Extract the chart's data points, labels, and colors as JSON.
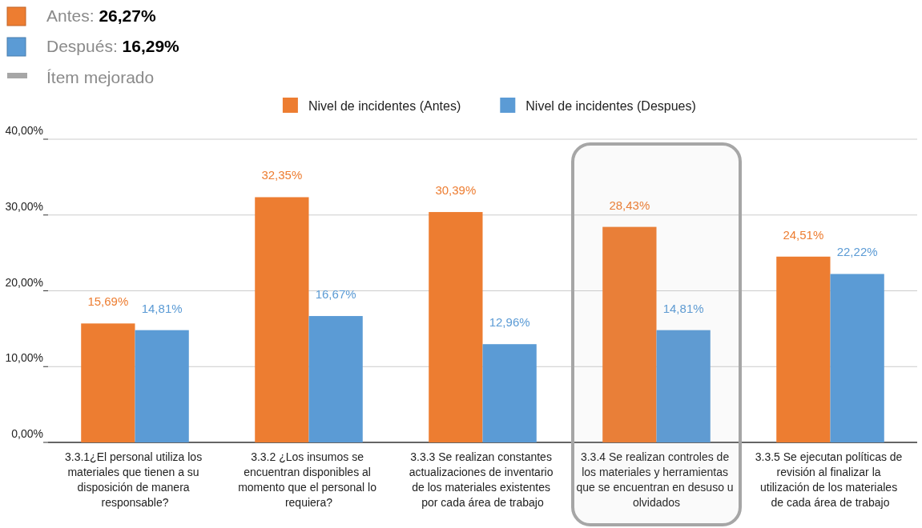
{
  "chart_data": {
    "type": "bar",
    "categories": [
      "3.3.1¿El personal utiliza los materiales que tienen a su disposición de manera responsable?",
      "3.3.2 ¿Los insumos se encuentran disponibles al momento que el personal lo requiera?",
      "3.3.3 Se realizan constantes actualizaciones de inventario de los materiales existentes por cada área de trabajo",
      "3.3.4 Se realizan controles de los materiales y herramientas que se encuentran en desuso u olvidados",
      "3.3.5 Se ejecutan políticas de revisión al finalizar la utilización de los materiales de cada área de trabajo"
    ],
    "series": [
      {
        "name": "Nivel de incidentes (Antes)",
        "color": "#ed7d31",
        "values": [
          15.69,
          32.35,
          30.39,
          28.43,
          24.51
        ],
        "value_labels": [
          "15,69%",
          "32,35%",
          "30,39%",
          "28,43%",
          "24,51%"
        ]
      },
      {
        "name": "Nivel de incidentes (Despues)",
        "color": "#5b9bd5",
        "values": [
          14.81,
          16.67,
          12.96,
          14.81,
          22.22
        ],
        "value_labels": [
          "14,81%",
          "16,67%",
          "12,96%",
          "14,81%",
          "22,22%"
        ]
      }
    ],
    "ylim": [
      0,
      40
    ],
    "yticks": [
      {
        "value": 0,
        "label": "0,00%"
      },
      {
        "value": 10,
        "label": "10,00%"
      },
      {
        "value": 20,
        "label": "20,00%"
      },
      {
        "value": 30,
        "label": "30,00%"
      },
      {
        "value": 40,
        "label": "40,00%"
      }
    ],
    "grid": "y",
    "legend": "top",
    "annotations": [
      "Antes: 26,27%",
      "Después: 16,29%"
    ],
    "bands": [
      {
        "axis": "x",
        "from": "3.3.4 Se realizan controles de los materiales y herramientas que se encuentran en desuso u olvidados",
        "to": "3.3.4 Se realizan controles de los materiales y herramientas que se encuentran en desuso u olvidados",
        "label": "Ítem mejorado",
        "color": "#a6a6a6"
      }
    ]
  }
}
